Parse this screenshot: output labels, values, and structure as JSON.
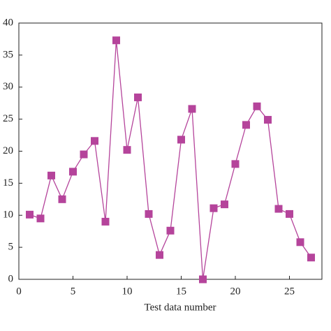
{
  "chart_data": {
    "type": "line",
    "x_label": "Test data number",
    "x": [
      1,
      2,
      3,
      4,
      5,
      6,
      7,
      8,
      9,
      10,
      11,
      12,
      13,
      14,
      15,
      16,
      17,
      18,
      19,
      20,
      21,
      22,
      23,
      24,
      25,
      26,
      27
    ],
    "series": [
      {
        "color": "#b5449b",
        "values": [
          10.1,
          9.5,
          16.2,
          12.5,
          16.8,
          19.5,
          21.6,
          9.0,
          37.3,
          20.2,
          28.4,
          10.2,
          3.8,
          7.6,
          21.8,
          26.6,
          0.0,
          11.1,
          11.7,
          18.0,
          24.1,
          27.0,
          24.9,
          11.0,
          10.2,
          5.8,
          3.4
        ]
      }
    ],
    "xlim": [
      0,
      28
    ],
    "xticks": [
      0,
      5,
      10,
      15,
      20,
      25
    ],
    "ylim": [
      0,
      40
    ],
    "yticks": [
      0,
      5,
      10,
      15,
      20,
      25,
      30,
      35,
      40
    ]
  }
}
